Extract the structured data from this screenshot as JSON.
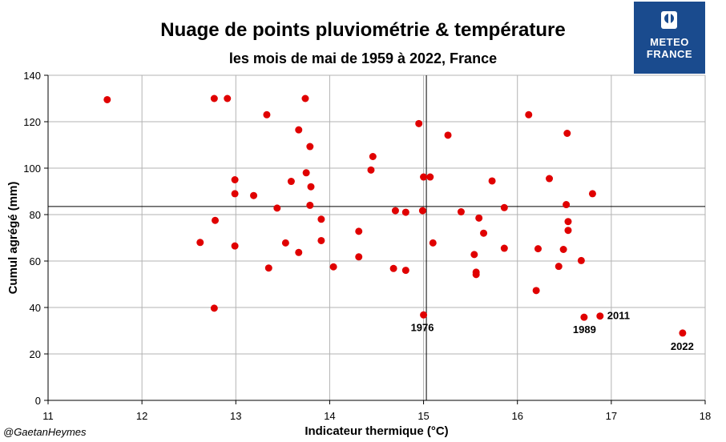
{
  "chart_data": {
    "type": "scatter",
    "title": "Nuage de points pluviométrie & température",
    "subtitle": "les mois de mai de 1959 à 2022, France",
    "xlabel": "Indicateur thermique (°C)",
    "ylabel": "Cumul agrégé (mm)",
    "xlim": [
      11,
      18
    ],
    "ylim": [
      0,
      140
    ],
    "x_ticks": [
      11,
      12,
      13,
      14,
      15,
      16,
      17,
      18
    ],
    "y_ticks": [
      0,
      20,
      40,
      60,
      80,
      100,
      120,
      140
    ],
    "grid": true,
    "marker_color": "#e00000",
    "reference_lines": {
      "x": 15.03,
      "y": 83.5
    },
    "points": [
      {
        "x": 11.63,
        "y": 129.5
      },
      {
        "x": 12.62,
        "y": 68.0
      },
      {
        "x": 12.77,
        "y": 130.0
      },
      {
        "x": 12.78,
        "y": 77.5
      },
      {
        "x": 12.77,
        "y": 39.7
      },
      {
        "x": 12.91,
        "y": 130.0
      },
      {
        "x": 12.99,
        "y": 95.0
      },
      {
        "x": 12.99,
        "y": 89.0
      },
      {
        "x": 12.99,
        "y": 66.5
      },
      {
        "x": 13.19,
        "y": 88.2
      },
      {
        "x": 13.33,
        "y": 123.0
      },
      {
        "x": 13.35,
        "y": 57.0
      },
      {
        "x": 13.44,
        "y": 82.8
      },
      {
        "x": 13.53,
        "y": 67.8
      },
      {
        "x": 13.59,
        "y": 94.3
      },
      {
        "x": 13.67,
        "y": 116.5
      },
      {
        "x": 13.67,
        "y": 63.7
      },
      {
        "x": 13.74,
        "y": 130.0
      },
      {
        "x": 13.75,
        "y": 98.0
      },
      {
        "x": 13.79,
        "y": 109.3
      },
      {
        "x": 13.8,
        "y": 92.0
      },
      {
        "x": 13.79,
        "y": 84.0
      },
      {
        "x": 13.91,
        "y": 78.0
      },
      {
        "x": 13.91,
        "y": 68.8
      },
      {
        "x": 14.04,
        "y": 57.5
      },
      {
        "x": 14.31,
        "y": 72.8
      },
      {
        "x": 14.31,
        "y": 61.8
      },
      {
        "x": 14.44,
        "y": 99.2
      },
      {
        "x": 14.46,
        "y": 105.0
      },
      {
        "x": 14.68,
        "y": 56.8
      },
      {
        "x": 14.7,
        "y": 81.7
      },
      {
        "x": 14.81,
        "y": 81.0
      },
      {
        "x": 14.81,
        "y": 56.0
      },
      {
        "x": 14.95,
        "y": 119.2
      },
      {
        "x": 14.99,
        "y": 81.7
      },
      {
        "x": 15.0,
        "y": 96.2
      },
      {
        "x": 15.0,
        "y": 36.8
      },
      {
        "x": 15.07,
        "y": 96.2
      },
      {
        "x": 15.1,
        "y": 67.8
      },
      {
        "x": 15.26,
        "y": 114.2
      },
      {
        "x": 15.4,
        "y": 81.2
      },
      {
        "x": 15.54,
        "y": 62.8
      },
      {
        "x": 15.56,
        "y": 55.2
      },
      {
        "x": 15.56,
        "y": 54.2
      },
      {
        "x": 15.59,
        "y": 78.5
      },
      {
        "x": 15.64,
        "y": 72.0
      },
      {
        "x": 15.73,
        "y": 94.5
      },
      {
        "x": 15.86,
        "y": 83.0
      },
      {
        "x": 15.86,
        "y": 65.5
      },
      {
        "x": 16.12,
        "y": 123.0
      },
      {
        "x": 16.2,
        "y": 47.3
      },
      {
        "x": 16.22,
        "y": 65.3
      },
      {
        "x": 16.34,
        "y": 95.5
      },
      {
        "x": 16.44,
        "y": 57.7
      },
      {
        "x": 16.49,
        "y": 65.0
      },
      {
        "x": 16.52,
        "y": 84.3
      },
      {
        "x": 16.53,
        "y": 115.0
      },
      {
        "x": 16.54,
        "y": 77.0
      },
      {
        "x": 16.54,
        "y": 73.2
      },
      {
        "x": 16.68,
        "y": 60.2
      },
      {
        "x": 16.71,
        "y": 35.8
      },
      {
        "x": 16.8,
        "y": 89.0
      },
      {
        "x": 16.88,
        "y": 36.3
      },
      {
        "x": 17.76,
        "y": 29.0
      }
    ],
    "annotations": [
      {
        "text": "1976",
        "x": 15.0,
        "y": 36.8,
        "dx": -16,
        "dy": 20
      },
      {
        "text": "1989",
        "x": 16.71,
        "y": 35.8,
        "dx": -14,
        "dy": 20
      },
      {
        "text": "2011",
        "x": 16.88,
        "y": 36.3,
        "dx": 9,
        "dy": 4
      },
      {
        "text": "2022",
        "x": 17.76,
        "y": 29.0,
        "dx": -15,
        "dy": 21
      }
    ]
  },
  "logo": {
    "line1": "METEO",
    "line2": "FRANCE"
  },
  "credit": "@GaetanHeymes"
}
